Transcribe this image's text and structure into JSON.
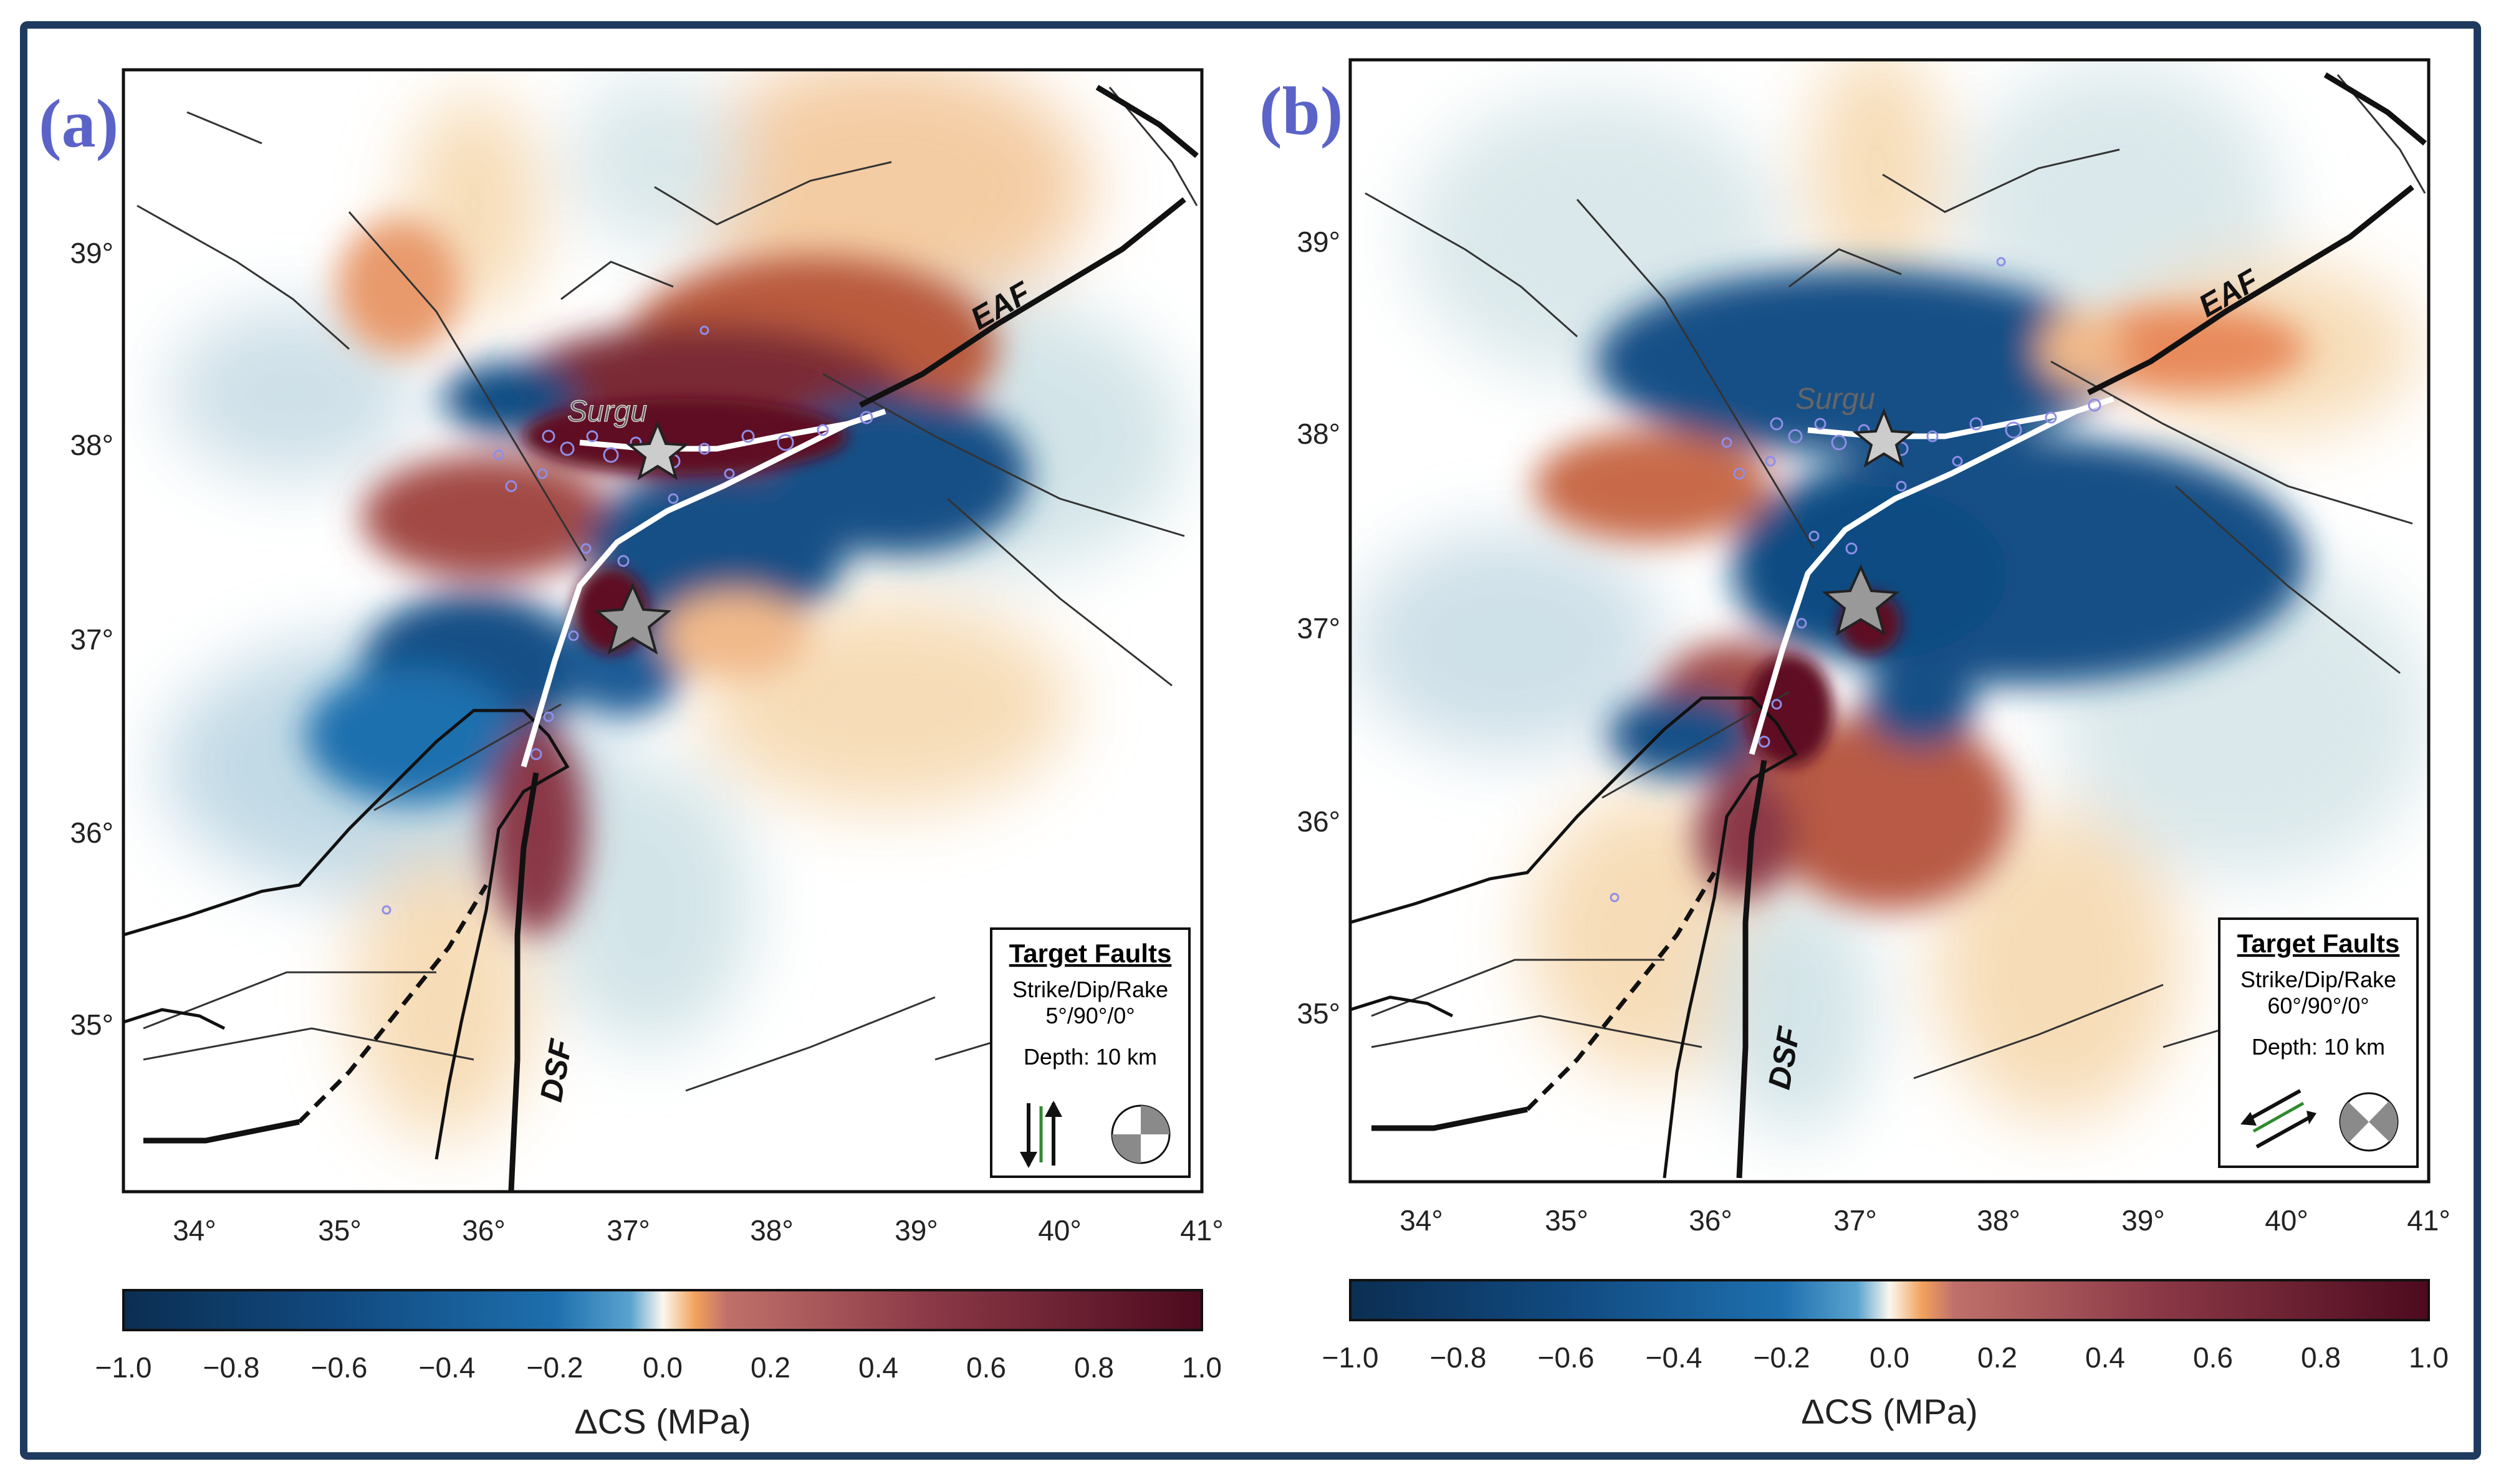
{
  "panels": [
    {
      "id": "a",
      "label": "(a)",
      "lon_ticks": [
        "34°",
        "35°",
        "36°",
        "37°",
        "38°",
        "39°",
        "40°",
        "41°"
      ],
      "lat_ticks": [
        "39°",
        "38°",
        "37°",
        "36°",
        "35°"
      ],
      "place_labels": {
        "town": "Surgu",
        "eaf": "EAF",
        "dsf": "DSF"
      },
      "legend": {
        "title": "Target Faults",
        "params_label": "Strike/Dip/Rake",
        "params_value": "5°/90°/0°",
        "depth": "Depth: 10 km",
        "arrows_icon": "vertical-strike-slip-arrows-icon",
        "beachball_icon": "beachball-focal-mechanism-icon"
      },
      "colorbar": {
        "ticks": [
          "−1.0",
          "−0.8",
          "−0.6",
          "−0.4",
          "−0.2",
          "0.0",
          "0.2",
          "0.4",
          "0.6",
          "0.8",
          "1.0"
        ],
        "label": "ΔCS (MPa)"
      }
    },
    {
      "id": "b",
      "label": "(b)",
      "lon_ticks": [
        "34°",
        "35°",
        "36°",
        "37°",
        "38°",
        "39°",
        "40°",
        "41°"
      ],
      "lat_ticks": [
        "39°",
        "38°",
        "37°",
        "36°",
        "35°"
      ],
      "place_labels": {
        "town": "Surgu",
        "eaf": "EAF",
        "dsf": "DSF"
      },
      "legend": {
        "title": "Target Faults",
        "params_label": "Strike/Dip/Rake",
        "params_value": "60°/90°/0°",
        "depth": "Depth: 10 km",
        "arrows_icon": "diagonal-strike-slip-arrows-icon",
        "beachball_icon": "beachball-focal-mechanism-icon"
      },
      "colorbar": {
        "ticks": [
          "−1.0",
          "−0.8",
          "−0.6",
          "−0.4",
          "−0.2",
          "0.0",
          "0.2",
          "0.4",
          "0.6",
          "0.8",
          "1.0"
        ],
        "label": "ΔCS (MPa)"
      }
    }
  ],
  "colors": {
    "frame": "#1f3a5f",
    "panel_label": "#5b63c8",
    "strong_negative": "#0b3d6b",
    "negative": "#1e6fae",
    "strong_positive": "#5e1020",
    "positive": "#c85a2e",
    "faint_positive": "#f6d9b0",
    "faint_negative": "#d7e6e9",
    "rupture": "#ffffff",
    "aftershock": "#8f8ee8"
  }
}
